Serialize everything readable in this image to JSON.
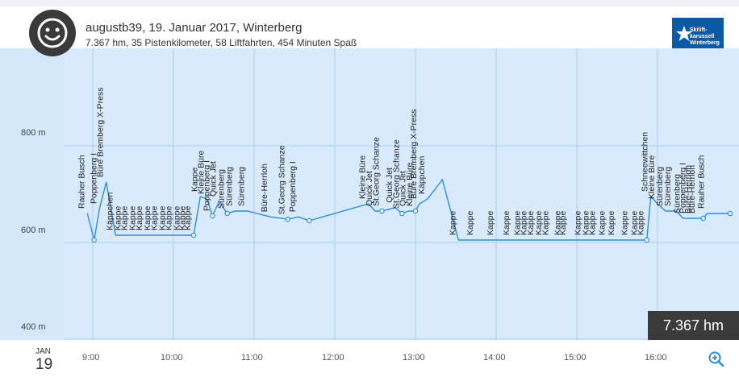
{
  "header": {
    "title": "augustb39, 19. Januar 2017, Winterberg",
    "subtitle": "7.367 hm, 35 Pistenkilometer, 58 Liftfahrten, 454 Minuten Spaß",
    "avatar_icon": "smiley-face-icon",
    "logo_icon": "skiliftkarussell-winterberg-logo",
    "logo_lines": [
      "Skilift-",
      "karussell",
      "Winterberg"
    ]
  },
  "date": {
    "month": "JAN",
    "day": "19"
  },
  "badge": {
    "value": "7.367 hm"
  },
  "zoom_icon": "zoom-in-icon",
  "colors": {
    "line": "#2a8fd6",
    "plot_bg": "#d8eafc",
    "grid": "#a7cff0",
    "badge_bg": "#3b3b3b"
  },
  "chart_data": {
    "type": "line",
    "x_type": "time",
    "xticks": [
      "9:00",
      "10:00",
      "11:00",
      "12:00",
      "13:00",
      "14:00",
      "15:00",
      "16:00"
    ],
    "yticks": [
      400,
      600,
      800
    ],
    "ytick_labels": [
      "400 m",
      "600 m",
      "800 m"
    ],
    "ylim": [
      380,
      900
    ],
    "grid": true,
    "series": [
      {
        "x": [
          "8:56",
          "9:01",
          "9:05",
          "9:10",
          "9:17",
          "9:23",
          "9:28",
          "9:34",
          "9:39",
          "9:45",
          "9:50",
          "9:56",
          "10:01",
          "10:07",
          "10:11",
          "10:15",
          "10:20",
          "10:25",
          "10:29",
          "10:34",
          "10:40",
          "10:46",
          "10:55",
          "11:12",
          "11:25",
          "11:33",
          "11:41",
          "12:25",
          "12:30",
          "12:35",
          "12:45",
          "12:50",
          "12:55",
          "13:00",
          "13:03",
          "13:09",
          "13:20",
          "13:32",
          "13:45",
          "14:00",
          "14:12",
          "14:20",
          "14:25",
          "14:30",
          "14:36",
          "14:41",
          "14:50",
          "14:54",
          "15:05",
          "15:11",
          "15:16",
          "15:23",
          "15:30",
          "15:40",
          "15:47",
          "15:52",
          "15:55",
          "16:00",
          "16:06",
          "16:12",
          "16:14",
          "16:19",
          "16:23",
          "16:27",
          "16:30",
          "16:34",
          "16:37",
          "16:41",
          "16:45",
          "16:54"
        ],
        "y": [
          660,
          605,
          670,
          725,
          615,
          615,
          615,
          615,
          615,
          615,
          615,
          615,
          615,
          615,
          615,
          615,
          695,
          690,
          655,
          685,
          660,
          665,
          665,
          653,
          648,
          653,
          645,
          680,
          665,
          665,
          672,
          660,
          665,
          665,
          680,
          690,
          730,
          605,
          605,
          605,
          605,
          605,
          605,
          605,
          605,
          605,
          605,
          605,
          605,
          605,
          605,
          605,
          605,
          605,
          605,
          605,
          695,
          680,
          665,
          665,
          665,
          650,
          650,
          650,
          650,
          650,
          660,
          660,
          660,
          660
        ]
      }
    ],
    "labels": [
      {
        "t": "8:56",
        "text": "Rauher Busch"
      },
      {
        "t": "9:05",
        "text": "Poppenberg I"
      },
      {
        "t": "9:10",
        "text": "Büre Bremberg X-Press"
      },
      {
        "t": "9:17",
        "text": "Käppchen"
      },
      {
        "t": "9:23",
        "text": "Kappe"
      },
      {
        "t": "9:28",
        "text": "Kappe"
      },
      {
        "t": "9:34",
        "text": "Kappe"
      },
      {
        "t": "9:39",
        "text": "Kappe"
      },
      {
        "t": "9:45",
        "text": "Kappe"
      },
      {
        "t": "9:50",
        "text": "Kappe"
      },
      {
        "t": "9:56",
        "text": "Kappe"
      },
      {
        "t": "10:01",
        "text": "Kappe"
      },
      {
        "t": "10:07",
        "text": "Kappe"
      },
      {
        "t": "10:11",
        "text": "Kappe"
      },
      {
        "t": "10:15",
        "text": "Kappe"
      },
      {
        "t": "10:20",
        "text": "Kappe"
      },
      {
        "t": "10:25",
        "text": "Kleine Büre"
      },
      {
        "t": "10:29",
        "text": "Poppenberg I"
      },
      {
        "t": "10:34",
        "text": "Quick Jet"
      },
      {
        "t": "10:40",
        "text": "Sürenberg"
      },
      {
        "t": "10:46",
        "text": "Sürenberg"
      },
      {
        "t": "10:55",
        "text": "Sürenberg"
      },
      {
        "t": "11:12",
        "text": "Büre-Herrloh"
      },
      {
        "t": "11:25",
        "text": "St.Georg Schanze"
      },
      {
        "t": "11:33",
        "text": "Poppenberg I"
      },
      {
        "t": "12:25",
        "text": "Kleine Büre"
      },
      {
        "t": "12:30",
        "text": "Quick Jet"
      },
      {
        "t": "12:35",
        "text": "St.Georg Schanze"
      },
      {
        "t": "12:45",
        "text": "Quick Jet"
      },
      {
        "t": "12:50",
        "text": "St.Georg Schanze"
      },
      {
        "t": "12:55",
        "text": "Quick Jet"
      },
      {
        "t": "13:00",
        "text": "Kleine Büre"
      },
      {
        "t": "13:03",
        "text": "Büre Bremberg X-Press"
      },
      {
        "t": "13:09",
        "text": "Käppchen"
      },
      {
        "t": "13:32",
        "text": "Kappe"
      },
      {
        "t": "13:45",
        "text": "Kappe"
      },
      {
        "t": "14:00",
        "text": "Kappe"
      },
      {
        "t": "14:12",
        "text": "Kappe"
      },
      {
        "t": "14:20",
        "text": "Kappe"
      },
      {
        "t": "14:25",
        "text": "Kappe"
      },
      {
        "t": "14:30",
        "text": "Kappe"
      },
      {
        "t": "14:36",
        "text": "Kappe"
      },
      {
        "t": "14:41",
        "text": "Kappe"
      },
      {
        "t": "14:50",
        "text": "Kappe"
      },
      {
        "t": "14:54",
        "text": "Kappe"
      },
      {
        "t": "15:05",
        "text": "Kappe"
      },
      {
        "t": "15:11",
        "text": "Kappe"
      },
      {
        "t": "15:16",
        "text": "Kappe"
      },
      {
        "t": "15:23",
        "text": "Kappe"
      },
      {
        "t": "15:30",
        "text": "Kappe"
      },
      {
        "t": "15:40",
        "text": "Kappe"
      },
      {
        "t": "15:47",
        "text": "Kappe"
      },
      {
        "t": "15:52",
        "text": "Kappe"
      },
      {
        "t": "15:55",
        "text": "Schneewittchen"
      },
      {
        "t": "16:00",
        "text": "Kleine Büre"
      },
      {
        "t": "16:06",
        "text": "Sürenberg"
      },
      {
        "t": "16:12",
        "text": "Sürenberg"
      },
      {
        "t": "16:19",
        "text": "Sürenberg"
      },
      {
        "t": "16:23",
        "text": "Poppenberg I"
      },
      {
        "t": "16:27",
        "text": "Büre-Herrloh"
      },
      {
        "t": "16:30",
        "text": "Büre-Herrloh"
      },
      {
        "t": "16:37",
        "text": "Rauher Busch"
      }
    ]
  }
}
